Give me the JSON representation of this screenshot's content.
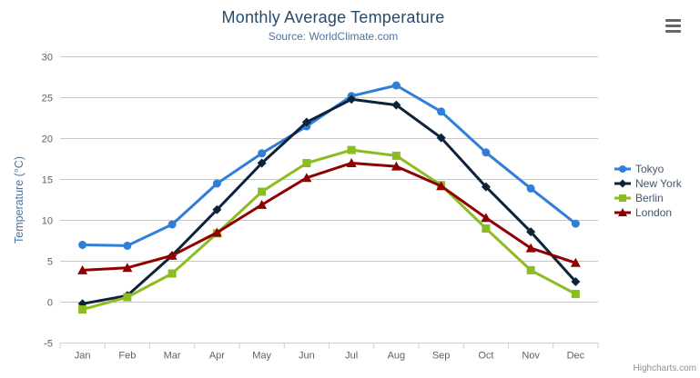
{
  "header": {
    "title": "Monthly Average Temperature",
    "subtitle": "Source: WorldClimate.com"
  },
  "export_menu": {
    "icon": "hamburger-menu-icon"
  },
  "credit": "Highcharts.com",
  "chart_data": {
    "type": "line",
    "title": "Monthly Average Temperature",
    "subtitle": "Source: WorldClimate.com",
    "categories": [
      "Jan",
      "Feb",
      "Mar",
      "Apr",
      "May",
      "Jun",
      "Jul",
      "Aug",
      "Sep",
      "Oct",
      "Nov",
      "Dec"
    ],
    "series": [
      {
        "name": "Tokyo",
        "color": "#2f7ed8",
        "marker": "circle",
        "values": [
          7.0,
          6.9,
          9.5,
          14.5,
          18.2,
          21.5,
          25.2,
          26.5,
          23.3,
          18.3,
          13.9,
          9.6
        ]
      },
      {
        "name": "New York",
        "color": "#0d233a",
        "marker": "diamond",
        "values": [
          -0.2,
          0.8,
          5.7,
          11.3,
          17.0,
          22.0,
          24.8,
          24.1,
          20.1,
          14.1,
          8.6,
          2.5
        ]
      },
      {
        "name": "Berlin",
        "color": "#8bbc21",
        "marker": "square",
        "values": [
          -0.9,
          0.6,
          3.5,
          8.4,
          13.5,
          17.0,
          18.6,
          17.9,
          14.3,
          9.0,
          3.9,
          1.0
        ]
      },
      {
        "name": "London",
        "color": "#910000",
        "marker": "triangle",
        "values": [
          3.9,
          4.2,
          5.7,
          8.5,
          11.9,
          15.2,
          17.0,
          16.6,
          14.2,
          10.3,
          6.6,
          4.8
        ]
      }
    ],
    "xlabel": "",
    "ylabel": "Temperature (°C)",
    "ylim": [
      -5,
      30
    ],
    "ytick_step": 5,
    "grid": true,
    "legend_position": "right"
  },
  "theme": {
    "background": "#ffffff",
    "title_color": "#274b6d",
    "subtitle_color": "#4d759e",
    "axis_title_color": "#4d759e",
    "tick_label_color": "#606060",
    "grid_color": "#c8c8c8",
    "axis_line_color": "#c0d0e0",
    "legend_text_color": "#3e576f",
    "credit_color": "#909090",
    "menu_icon_color": "#666666"
  }
}
